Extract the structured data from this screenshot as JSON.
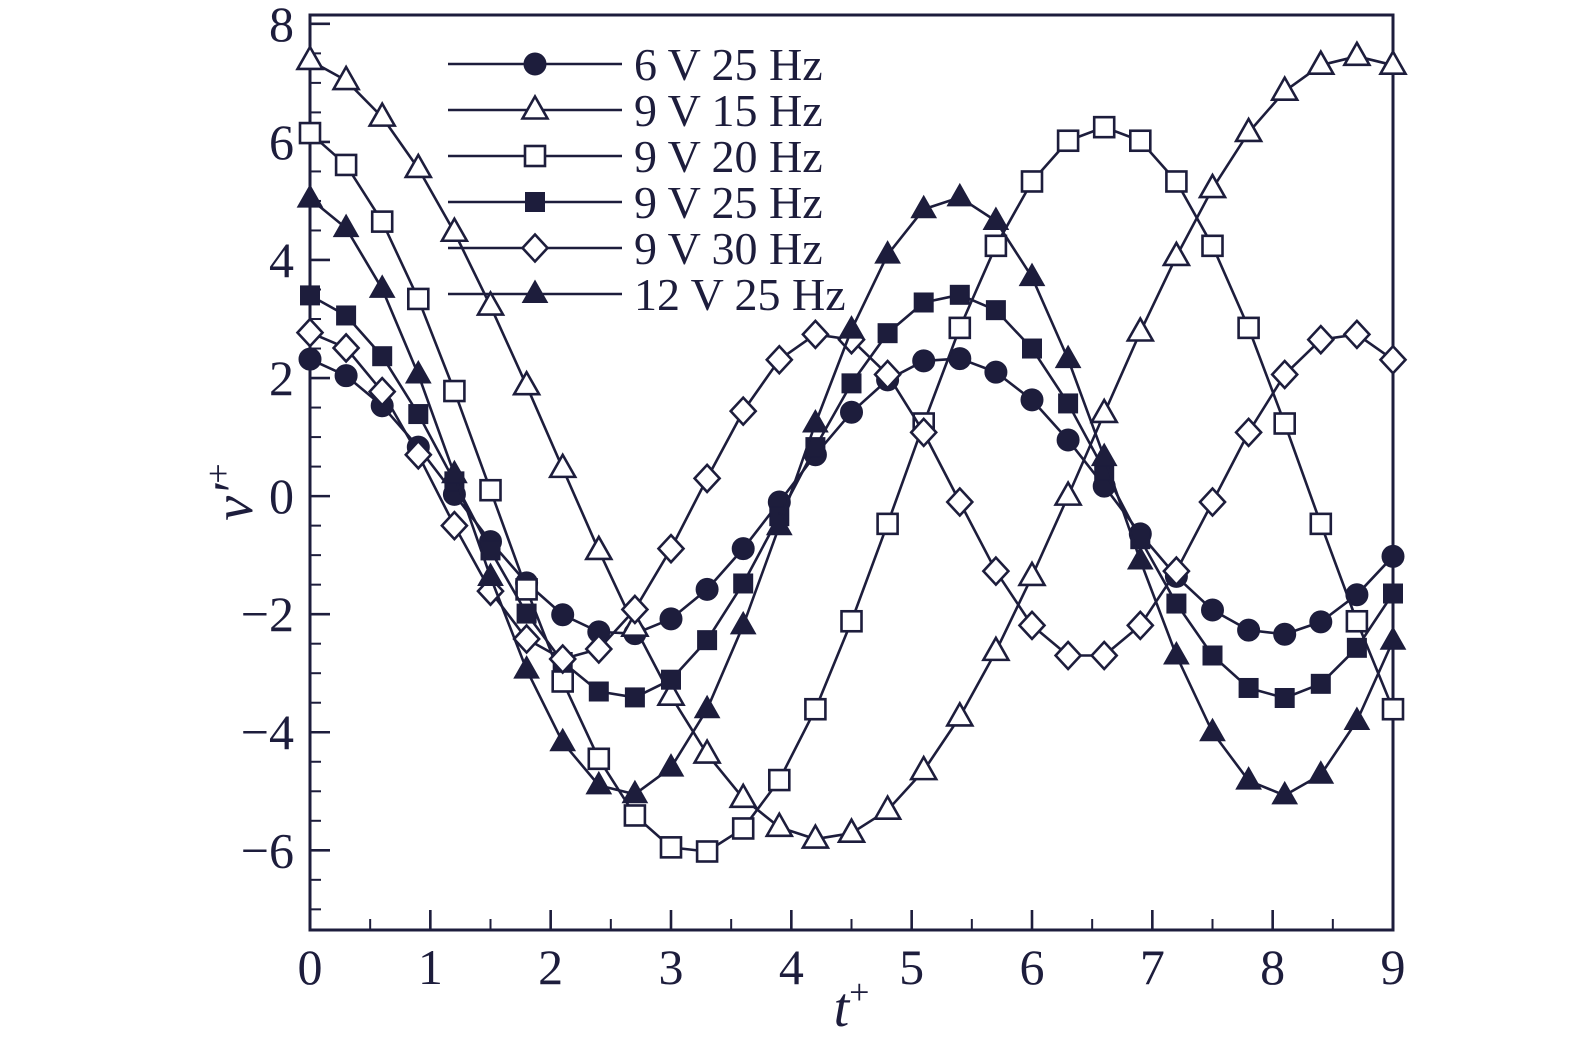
{
  "chart_data": {
    "type": "line",
    "title": "",
    "xlabel_base": "t",
    "xlabel_sup": "+",
    "ylabel_base": "v′",
    "ylabel_sup": "+",
    "xlim": [
      0,
      9
    ],
    "ylim": [
      -7.35,
      8.15
    ],
    "x_major_ticks": [
      0,
      1,
      2,
      3,
      4,
      5,
      6,
      7,
      8,
      9
    ],
    "x_minor_step": 0.5,
    "y_major_ticks": [
      -6,
      -4,
      -2,
      0,
      2,
      4,
      6,
      8
    ],
    "y_minor_step": 0.5,
    "grid": false,
    "legend_position": "top-left-inside",
    "line_color": "#1d1d3c",
    "background_color": "#ffffff",
    "x": [
      0,
      0.3,
      0.6,
      0.9,
      1.2,
      1.5,
      1.8,
      2.1,
      2.4,
      2.7,
      3.0,
      3.3,
      3.6,
      3.9,
      4.2,
      4.5,
      4.8,
      5.1,
      5.4,
      5.7,
      6.0,
      6.3,
      6.6,
      6.9,
      7.2,
      7.5,
      7.8,
      8.1,
      8.4,
      8.7,
      9.0
    ],
    "series": [
      {
        "name": "6 V 25 Hz",
        "marker": "circle-filled",
        "values": [
          2.32,
          2.04,
          1.53,
          0.83,
          0.03,
          -0.77,
          -1.47,
          -2.01,
          -2.3,
          -2.33,
          -2.08,
          -1.58,
          -0.89,
          -0.1,
          0.7,
          1.42,
          1.97,
          2.29,
          2.33,
          2.1,
          1.63,
          0.95,
          0.17,
          -0.64,
          -1.36,
          -1.93,
          -2.27,
          -2.34,
          -2.13,
          -1.67,
          -1.02
        ]
      },
      {
        "name": "9 V 15 Hz",
        "marker": "triangle-open",
        "values": [
          7.38,
          7.04,
          6.42,
          5.55,
          4.47,
          3.22,
          1.87,
          0.47,
          -0.92,
          -2.22,
          -3.39,
          -4.37,
          -5.12,
          -5.61,
          -5.81,
          -5.71,
          -5.32,
          -4.65,
          -3.74,
          -2.63,
          -1.36,
          0.0,
          1.4,
          2.78,
          4.06,
          5.21,
          6.16,
          6.86,
          7.3,
          7.45,
          7.3
        ]
      },
      {
        "name": "9 V 20 Hz",
        "marker": "square-open",
        "values": [
          6.15,
          5.61,
          4.65,
          3.34,
          1.78,
          0.1,
          -1.58,
          -3.14,
          -4.45,
          -5.41,
          -5.95,
          -6.02,
          -5.63,
          -4.81,
          -3.61,
          -2.12,
          -0.47,
          1.23,
          2.85,
          4.24,
          5.33,
          6.02,
          6.25,
          6.02,
          5.33,
          4.24,
          2.85,
          1.23,
          -0.47,
          -2.12,
          -3.61
        ]
      },
      {
        "name": "9 V 25 Hz",
        "marker": "square-filled",
        "values": [
          3.4,
          3.06,
          2.37,
          1.39,
          0.25,
          -0.92,
          -1.99,
          -2.81,
          -3.31,
          -3.41,
          -3.11,
          -2.44,
          -1.48,
          -0.34,
          0.83,
          1.91,
          2.76,
          3.28,
          3.41,
          3.15,
          2.5,
          1.57,
          0.44,
          -0.73,
          -1.82,
          -2.7,
          -3.25,
          -3.42,
          -3.18,
          -2.57,
          -1.65
        ]
      },
      {
        "name": "9 V 30 Hz",
        "marker": "diamond-open",
        "values": [
          2.77,
          2.51,
          1.77,
          0.7,
          -0.5,
          -1.61,
          -2.42,
          -2.76,
          -2.59,
          -1.92,
          -0.89,
          0.3,
          1.44,
          2.31,
          2.74,
          2.65,
          2.06,
          1.08,
          -0.1,
          -1.27,
          -2.19,
          -2.7,
          -2.7,
          -2.19,
          -1.27,
          -0.1,
          1.08,
          2.06,
          2.65,
          2.74,
          2.31
        ]
      },
      {
        "name": "12 V 25 Hz",
        "marker": "triangle-filled",
        "values": [
          5.04,
          4.54,
          3.51,
          2.06,
          0.37,
          -1.37,
          -2.94,
          -4.17,
          -4.9,
          -5.05,
          -4.6,
          -3.61,
          -2.19,
          -0.51,
          1.23,
          2.82,
          4.09,
          4.86,
          5.06,
          4.66,
          3.71,
          2.32,
          0.66,
          -1.09,
          -2.7,
          -4.0,
          -4.82,
          -5.07,
          -4.72,
          -3.81,
          -2.45
        ]
      }
    ]
  }
}
